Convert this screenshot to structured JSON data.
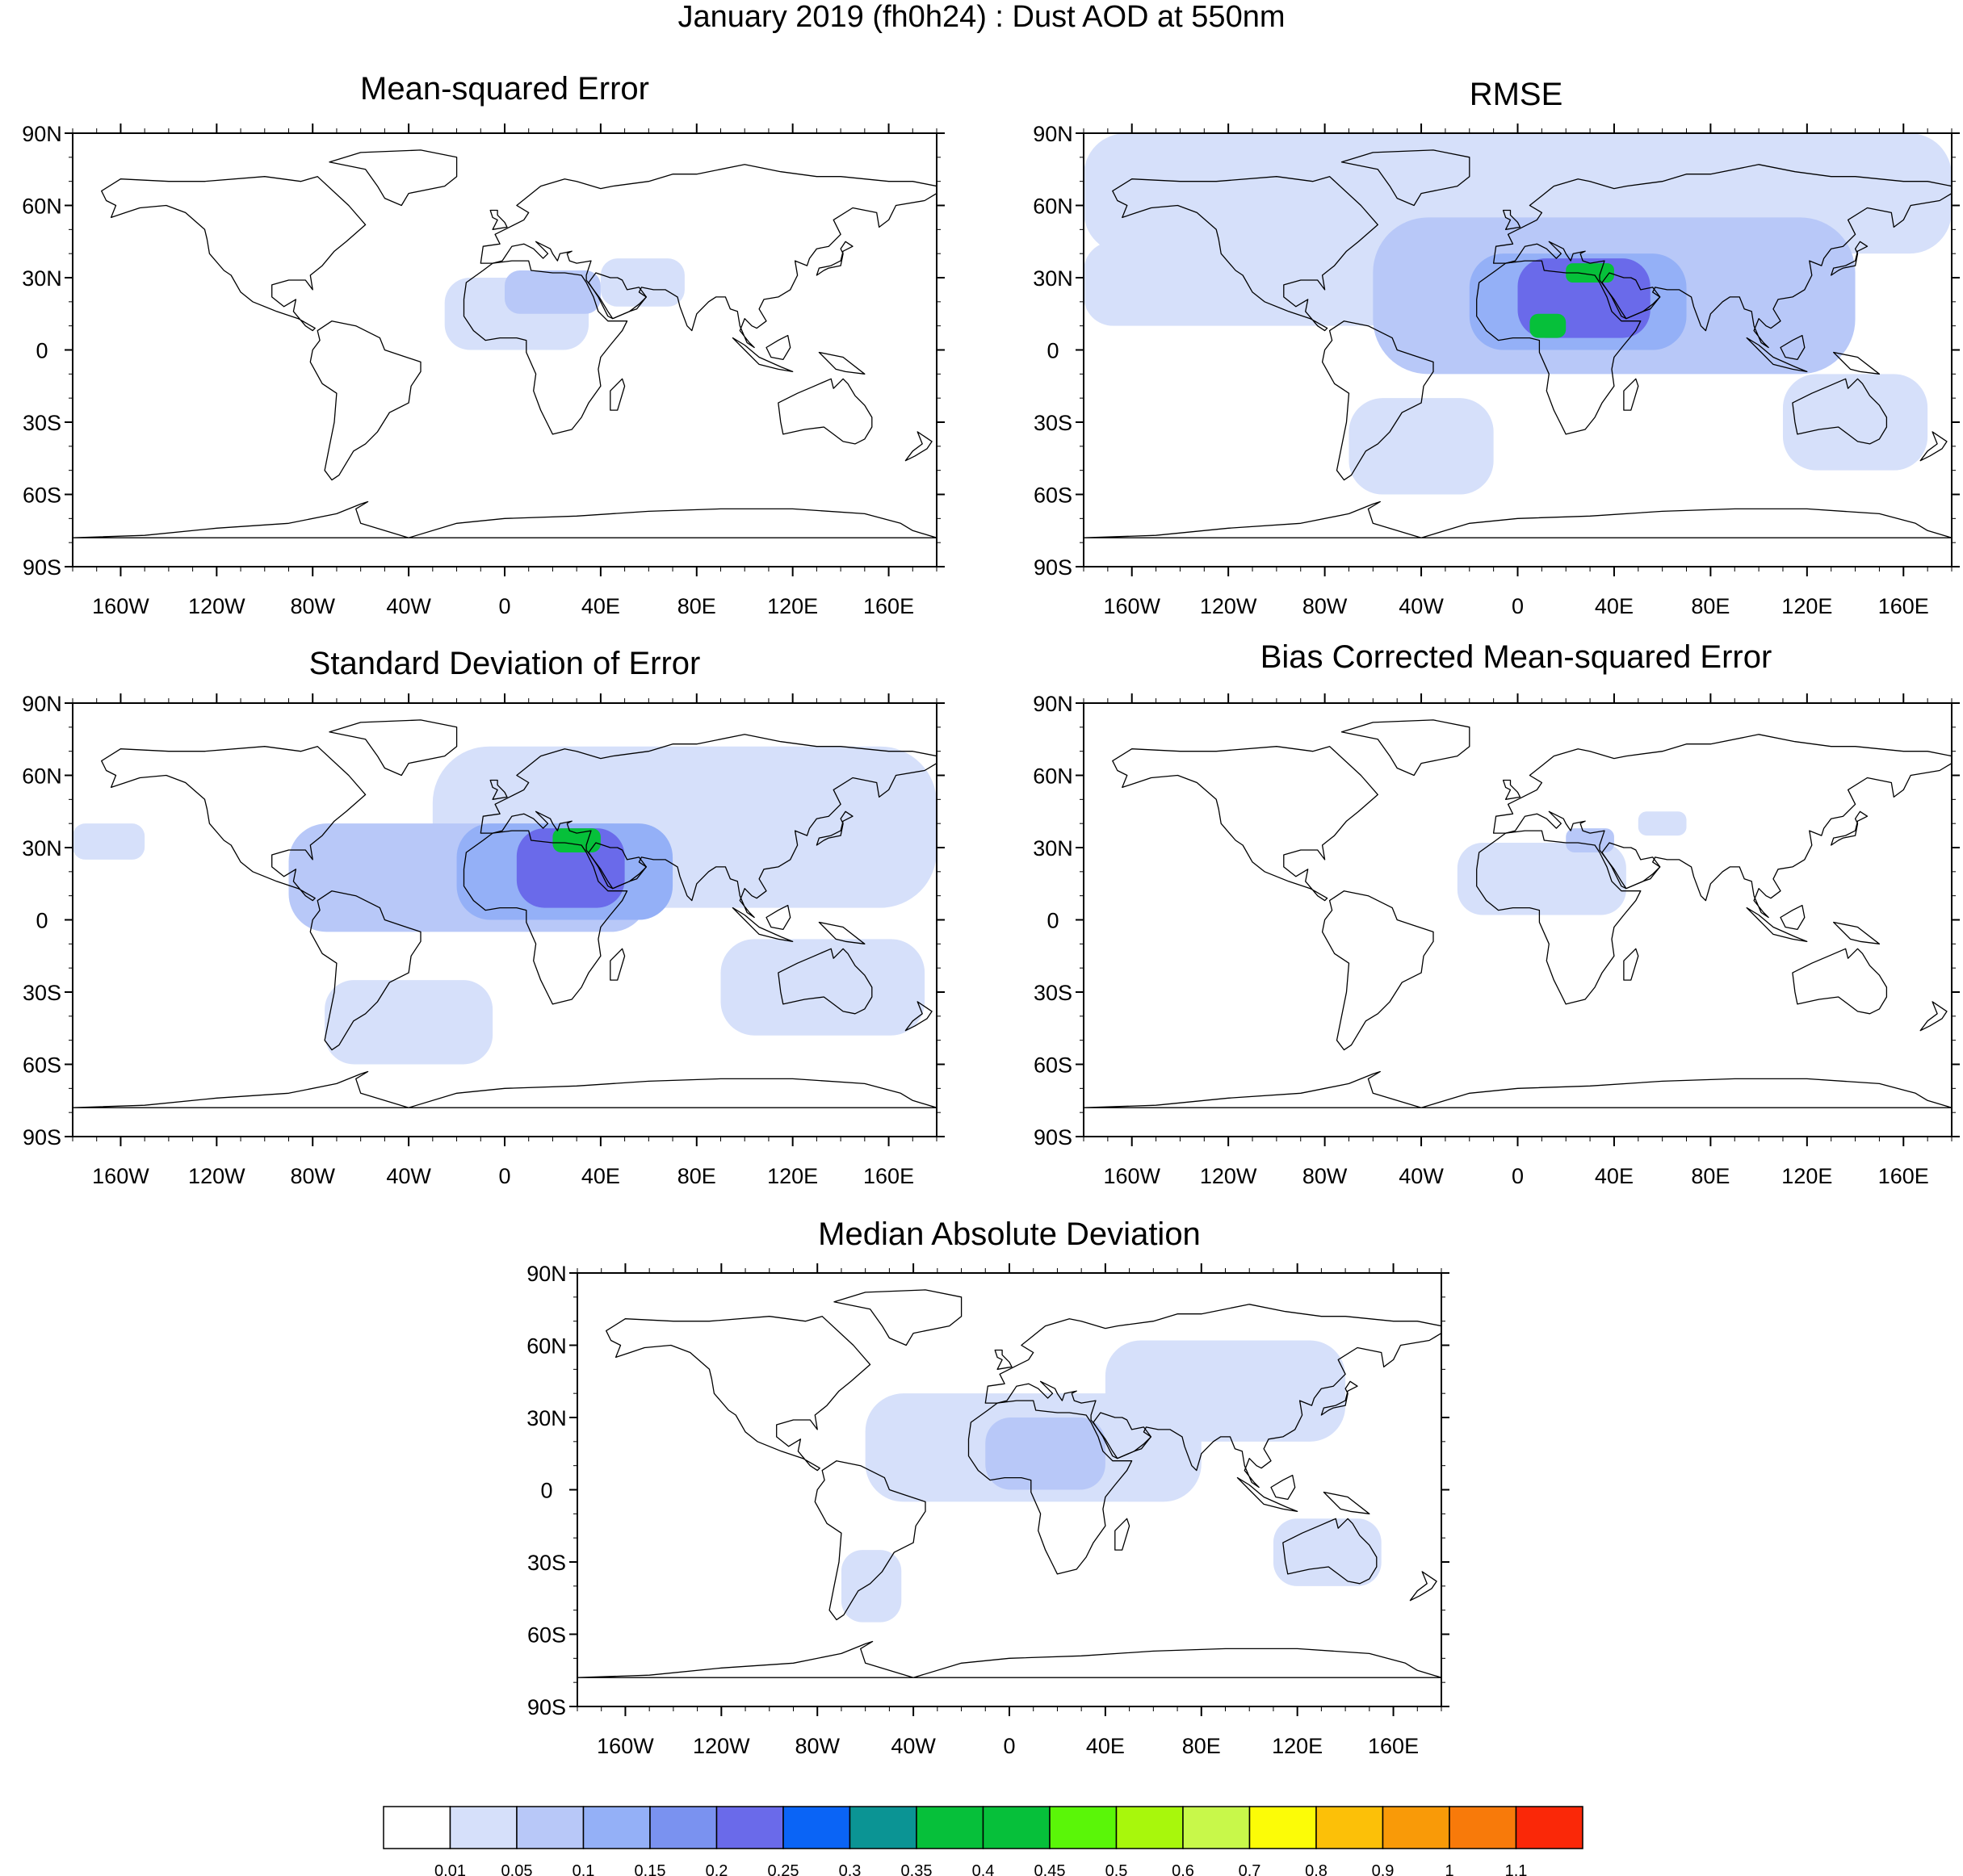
{
  "figure": {
    "title": "January 2019 (fh0h24) : Dust AOD at 550nm"
  },
  "chart_data": [
    {
      "type": "heatmap",
      "title": "Mean-squared Error",
      "lat_ticks": [
        "90N",
        "60N",
        "30N",
        "0",
        "30S",
        "60S",
        "90S"
      ],
      "lon_ticks": [
        "160W",
        "120W",
        "80W",
        "40W",
        "0",
        "40E",
        "80E",
        "120E",
        "160E"
      ],
      "xlim": [
        -180,
        180
      ],
      "ylim": [
        -90,
        90
      ],
      "regions": [
        {
          "lon": [
            -25,
            35
          ],
          "lat": [
            0,
            30
          ],
          "value": 0.03
        },
        {
          "lon": [
            0,
            40
          ],
          "lat": [
            15,
            33
          ],
          "value": 0.06
        },
        {
          "lon": [
            40,
            75
          ],
          "lat": [
            18,
            38
          ],
          "value": 0.03
        }
      ]
    },
    {
      "type": "heatmap",
      "title": "RMSE",
      "lat_ticks": [
        "90N",
        "60N",
        "30N",
        "0",
        "30S",
        "60S",
        "90S"
      ],
      "lon_ticks": [
        "160W",
        "120W",
        "80W",
        "40W",
        "0",
        "40E",
        "80E",
        "120E",
        "160E"
      ],
      "xlim": [
        -180,
        180
      ],
      "ylim": [
        -90,
        90
      ],
      "regions": [
        {
          "lon": [
            -180,
            180
          ],
          "lat": [
            40,
            90
          ],
          "value": 0.03
        },
        {
          "lon": [
            -180,
            -50
          ],
          "lat": [
            10,
            45
          ],
          "value": 0.03
        },
        {
          "lon": [
            -60,
            140
          ],
          "lat": [
            -10,
            55
          ],
          "value": 0.05
        },
        {
          "lon": [
            110,
            170
          ],
          "lat": [
            -50,
            -10
          ],
          "value": 0.04
        },
        {
          "lon": [
            -70,
            -10
          ],
          "lat": [
            -60,
            -20
          ],
          "value": 0.03
        },
        {
          "lon": [
            -20,
            70
          ],
          "lat": [
            0,
            40
          ],
          "value": 0.1
        },
        {
          "lon": [
            0,
            55
          ],
          "lat": [
            5,
            38
          ],
          "value": 0.2
        },
        {
          "lon": [
            20,
            40
          ],
          "lat": [
            28,
            36
          ],
          "value": 0.4
        },
        {
          "lon": [
            5,
            20
          ],
          "lat": [
            5,
            15
          ],
          "value": 0.4
        }
      ]
    },
    {
      "type": "heatmap",
      "title": "Standard Deviation of Error",
      "lat_ticks": [
        "90N",
        "60N",
        "30N",
        "0",
        "30S",
        "60S",
        "90S"
      ],
      "lon_ticks": [
        "160W",
        "120W",
        "80W",
        "40W",
        "0",
        "40E",
        "80E",
        "120E",
        "160E"
      ],
      "xlim": [
        -180,
        180
      ],
      "ylim": [
        -90,
        90
      ],
      "regions": [
        {
          "lon": [
            -30,
            180
          ],
          "lat": [
            5,
            72
          ],
          "value": 0.03
        },
        {
          "lon": [
            -180,
            -150
          ],
          "lat": [
            25,
            40
          ],
          "value": 0.03
        },
        {
          "lon": [
            -90,
            60
          ],
          "lat": [
            -5,
            40
          ],
          "value": 0.05
        },
        {
          "lon": [
            90,
            175
          ],
          "lat": [
            -48,
            -8
          ],
          "value": 0.04
        },
        {
          "lon": [
            -75,
            -5
          ],
          "lat": [
            -60,
            -25
          ],
          "value": 0.03
        },
        {
          "lon": [
            -20,
            70
          ],
          "lat": [
            0,
            40
          ],
          "value": 0.1
        },
        {
          "lon": [
            5,
            50
          ],
          "lat": [
            5,
            38
          ],
          "value": 0.2
        },
        {
          "lon": [
            20,
            40
          ],
          "lat": [
            28,
            38
          ],
          "value": 0.4
        }
      ]
    },
    {
      "type": "heatmap",
      "title": "Bias Corrected Mean-squared Error",
      "lat_ticks": [
        "90N",
        "60N",
        "30N",
        "0",
        "30S",
        "60S",
        "90S"
      ],
      "lon_ticks": [
        "160W",
        "120W",
        "80W",
        "40W",
        "0",
        "40E",
        "80E",
        "120E",
        "160E"
      ],
      "xlim": [
        -180,
        180
      ],
      "ylim": [
        -90,
        90
      ],
      "regions": [
        {
          "lon": [
            -25,
            45
          ],
          "lat": [
            2,
            32
          ],
          "value": 0.03
        },
        {
          "lon": [
            20,
            40
          ],
          "lat": [
            28,
            38
          ],
          "value": 0.06
        },
        {
          "lon": [
            50,
            70
          ],
          "lat": [
            35,
            45
          ],
          "value": 0.03
        }
      ]
    },
    {
      "type": "heatmap",
      "title": "Median Absolute Deviation",
      "lat_ticks": [
        "90N",
        "60N",
        "30N",
        "0",
        "30S",
        "60S",
        "90S"
      ],
      "lon_ticks": [
        "160W",
        "120W",
        "80W",
        "40W",
        "0",
        "40E",
        "80E",
        "120E",
        "160E"
      ],
      "xlim": [
        -180,
        180
      ],
      "ylim": [
        -90,
        90
      ],
      "regions": [
        {
          "lon": [
            -60,
            80
          ],
          "lat": [
            -5,
            40
          ],
          "value": 0.03
        },
        {
          "lon": [
            40,
            140
          ],
          "lat": [
            20,
            62
          ],
          "value": 0.03
        },
        {
          "lon": [
            110,
            155
          ],
          "lat": [
            -40,
            -12
          ],
          "value": 0.04
        },
        {
          "lon": [
            -70,
            -45
          ],
          "lat": [
            -55,
            -25
          ],
          "value": 0.03
        },
        {
          "lon": [
            -10,
            40
          ],
          "lat": [
            0,
            30
          ],
          "value": 0.08
        }
      ]
    }
  ],
  "colorbar": {
    "levels": [
      "0.01",
      "0.05",
      "0.1",
      "0.15",
      "0.2",
      "0.25",
      "0.3",
      "0.35",
      "0.4",
      "0.45",
      "0.5",
      "0.6",
      "0.7",
      "0.8",
      "0.9",
      "1",
      "1.1"
    ],
    "colors": [
      "#ffffff",
      "#d6e0fa",
      "#b8c8f8",
      "#94b0f7",
      "#7a92f0",
      "#6a6aea",
      "#0a64f6",
      "#0b9494",
      "#06c03a",
      "#06c03a",
      "#5af608",
      "#a8f70c",
      "#c8f84a",
      "#fcfc07",
      "#fcc008",
      "#f99a08",
      "#f87a0a",
      "#fa2808"
    ]
  },
  "colors": {
    "land_outline": "#000000",
    "frame": "#000000"
  }
}
